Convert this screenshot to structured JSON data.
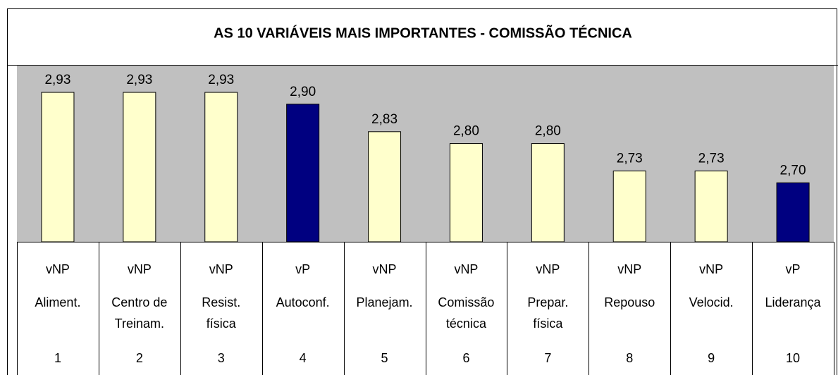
{
  "chart_data": {
    "type": "bar",
    "title": "AS 10 VARIÁVEIS MAIS IMPORTANTES - COMISSÃO TÉCNICA",
    "categories": [
      "Aliment.",
      "Centro de\nTreinam.",
      "Resist.\nfísica",
      "Autoconf.",
      "Planejam.",
      "Comissão\ntécnica",
      "Prepar.\nfísica",
      "Repouso",
      "Velocid.",
      "Liderança"
    ],
    "groups": [
      "vNP",
      "vNP",
      "vNP",
      "vP",
      "vNP",
      "vNP",
      "vNP",
      "vNP",
      "vNP",
      "vP"
    ],
    "numbers": [
      "1",
      "2",
      "3",
      "4",
      "5",
      "6",
      "7",
      "8",
      "9",
      "10"
    ],
    "values": [
      2.93,
      2.93,
      2.93,
      2.9,
      2.83,
      2.8,
      2.8,
      2.73,
      2.73,
      2.7
    ],
    "value_labels": [
      "2,93",
      "2,93",
      "2,93",
      "2,90",
      "2,83",
      "2,80",
      "2,80",
      "2,73",
      "2,73",
      "2,70"
    ],
    "colors": [
      "#ffffcc",
      "#ffffcc",
      "#ffffcc",
      "#000080",
      "#ffffcc",
      "#ffffcc",
      "#ffffcc",
      "#ffffcc",
      "#ffffcc",
      "#000080"
    ],
    "ylim": [
      2.55,
      3.0
    ]
  }
}
